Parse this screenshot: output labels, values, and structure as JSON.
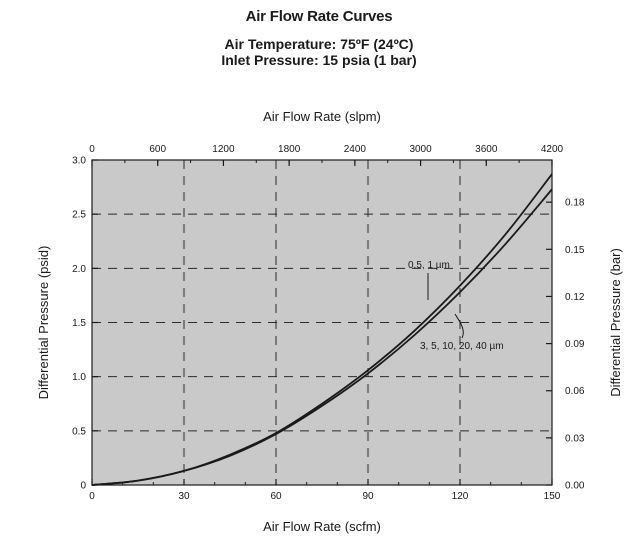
{
  "chart_data": {
    "type": "line",
    "title": "Air Flow Rate Curves",
    "subtitle_lines": [
      "Air Temperature: 75ºF (24ºC)",
      "Inlet Pressure: 15 psia (1 bar)"
    ],
    "xlabel": "Air Flow Rate (scfm)",
    "xlabel_top": "Air Flow Rate (slpm)",
    "ylabel": "Differential Pressure (psid)",
    "ylabel_right": "Differential Pressure (bar)",
    "xlim": [
      0,
      150
    ],
    "ylim": [
      0,
      3.0
    ],
    "x_ticks": [
      "0",
      "30",
      "60",
      "90",
      "120",
      "150"
    ],
    "x_ticks_top": [
      "0",
      "600",
      "1200",
      "1800",
      "2400",
      "3000",
      "3600",
      "4200"
    ],
    "y_ticks": [
      "0",
      "0.5",
      "1.0",
      "1.5",
      "2.0",
      "2.5",
      "3.0"
    ],
    "y_ticks_right": [
      "0.00",
      "0.03",
      "0.06",
      "0.09",
      "0.12",
      "0.15",
      "0.18"
    ],
    "grid": true,
    "series": [
      {
        "name": "0.5, 1 µm",
        "x": [
          0,
          15,
          30,
          45,
          60,
          75,
          90,
          105,
          120,
          135,
          150
        ],
        "y": [
          0,
          0.04,
          0.13,
          0.28,
          0.48,
          0.75,
          1.06,
          1.42,
          1.84,
          2.32,
          2.87
        ]
      },
      {
        "name": "3, 5, 10, 20, 40 µm",
        "x": [
          0,
          15,
          30,
          45,
          60,
          75,
          90,
          105,
          120,
          135,
          150
        ],
        "y": [
          0,
          0.04,
          0.13,
          0.27,
          0.47,
          0.73,
          1.03,
          1.38,
          1.78,
          2.23,
          2.73
        ]
      }
    ],
    "annotations": [
      "0.5, 1 µm",
      "3, 5, 10, 20, 40 µm"
    ],
    "colors": {
      "plot_bg": "#c9c9c9",
      "line": "#1a1a1a",
      "grid": "#2a2a2a"
    }
  }
}
